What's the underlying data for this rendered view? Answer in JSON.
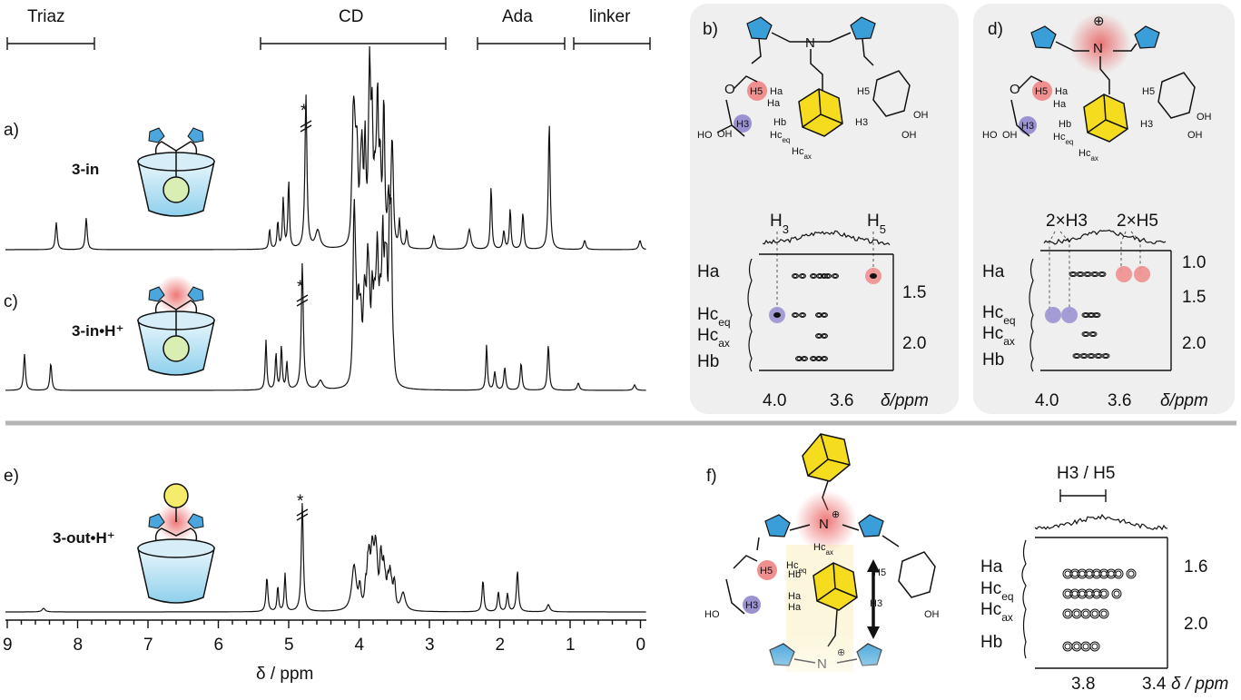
{
  "region_labels": [
    "Triaz",
    "CD",
    "Ada",
    "linker"
  ],
  "panel_labels": {
    "a": "a)",
    "b": "b)",
    "c": "c)",
    "d": "d)",
    "e": "e)",
    "f": "f)"
  },
  "compound_labels": {
    "a": "3-in",
    "c": "3-in•H⁺",
    "e": "3-out•H⁺"
  },
  "solvent_marker": "*",
  "main_axis": {
    "label": "δ / ppm",
    "ticks": [
      "9",
      "8",
      "7",
      "6",
      "5",
      "4",
      "3",
      "2",
      "1",
      "0"
    ]
  },
  "noesy_b": {
    "top_labels": [
      "H3",
      "H5"
    ],
    "rows": [
      "Ha",
      "Hceq",
      "Hcax",
      "Hb"
    ],
    "x_ticks": [
      "4.0",
      "3.6"
    ],
    "y_ticks": [
      "1.5",
      "2.0"
    ],
    "axis_label": "δ/ppm"
  },
  "noesy_d": {
    "top_labels": [
      "2×H3",
      "2×H5"
    ],
    "rows": [
      "Ha",
      "Hceq",
      "Hcax",
      "Hb"
    ],
    "x_ticks": [
      "4.0",
      "3.6"
    ],
    "y_ticks": [
      "1.0",
      "1.5",
      "2.0"
    ],
    "axis_label": "δ/ppm"
  },
  "noesy_f": {
    "top_label": "H3 / H5",
    "rows": [
      "Ha",
      "Hceq",
      "Hcax",
      "Hb"
    ],
    "x_ticks": [
      "3.8",
      "3.4"
    ],
    "y_ticks": [
      "1.6",
      "2.0"
    ],
    "axis_label": "δ / ppm"
  },
  "structure_labels": {
    "ha": "Ha",
    "hb": "Hb",
    "h5": "H5",
    "h3": "H3",
    "n": "N",
    "nh": "H",
    "o": "O",
    "oh": "OH",
    "ho": "HO",
    "plus": "⊕"
  },
  "colors": {
    "triazole": "#3a9fd8",
    "adamantane": "#f5dc1e",
    "cd_body": "#a8dcef",
    "h5_pink": "#ef8f8f",
    "h3_purple": "#9b93d1",
    "proton_glow": "#e84a4a",
    "panel_bg": "#efefef"
  }
}
